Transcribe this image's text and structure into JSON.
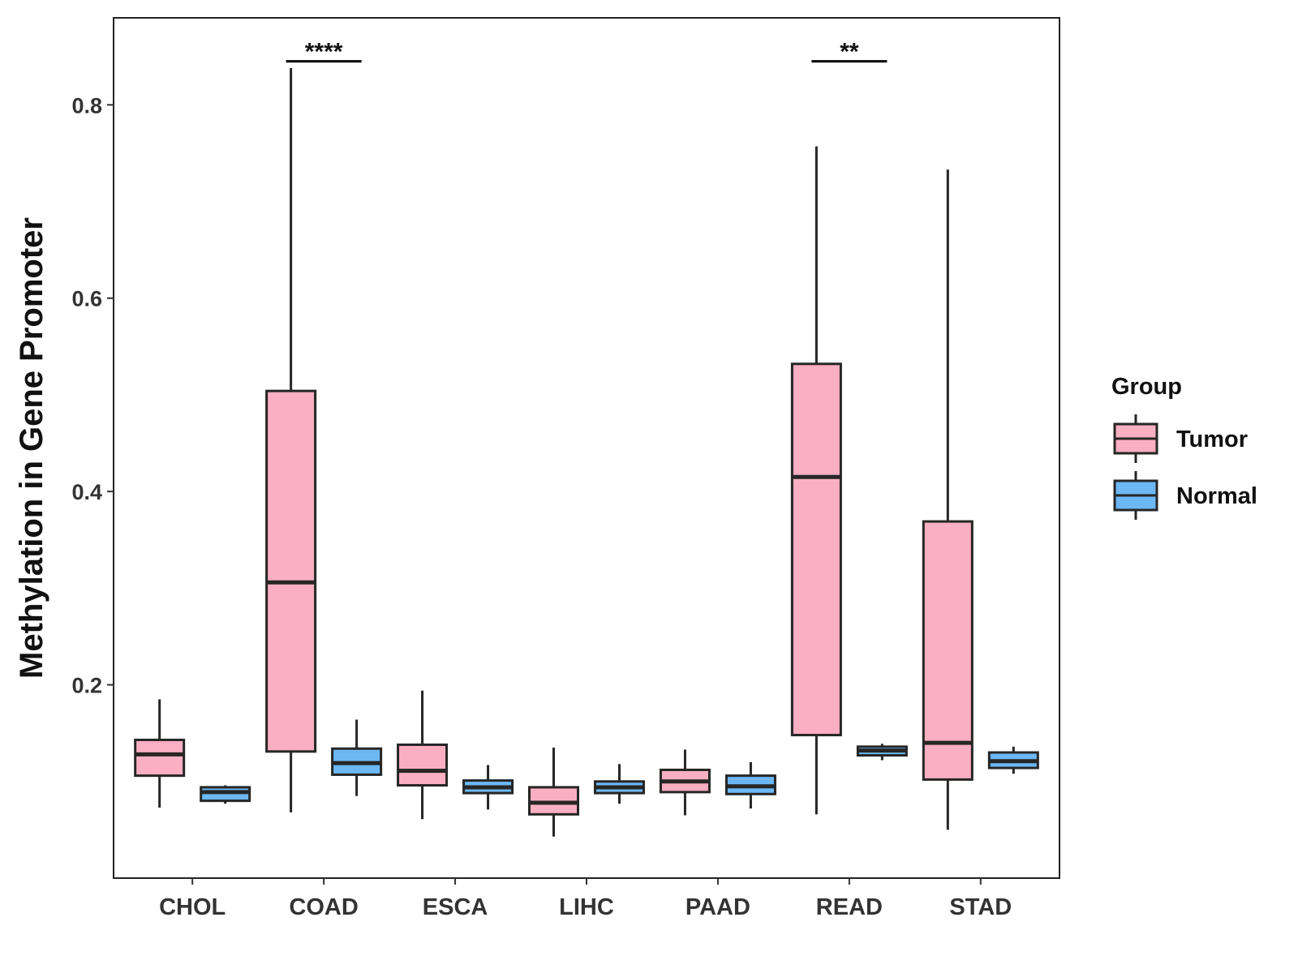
{
  "chart_data": {
    "type": "boxplot",
    "title": "",
    "xlabel": "",
    "ylabel": "Methylation in Gene Promoter",
    "ylim": [
      0.0,
      0.89
    ],
    "yticks": [
      0.2,
      0.4,
      0.6,
      0.8
    ],
    "ytick_labels": [
      "0.2",
      "0.4",
      "0.6",
      "0.8"
    ],
    "grid": false,
    "categories": [
      "CHOL",
      "COAD",
      "ESCA",
      "LIHC",
      "PAAD",
      "READ",
      "STAD"
    ],
    "series": [
      {
        "name": "Tumor",
        "color": "#FBAFC2",
        "boxes": [
          {
            "min": 0.073,
            "q1": 0.106,
            "median": 0.128,
            "q3": 0.143,
            "max": 0.185
          },
          {
            "min": 0.068,
            "q1": 0.131,
            "median": 0.306,
            "q3": 0.504,
            "max": 0.838
          },
          {
            "min": 0.061,
            "q1": 0.096,
            "median": 0.111,
            "q3": 0.138,
            "max": 0.194
          },
          {
            "min": 0.043,
            "q1": 0.066,
            "median": 0.078,
            "q3": 0.094,
            "max": 0.135
          },
          {
            "min": 0.065,
            "q1": 0.089,
            "median": 0.1,
            "q3": 0.112,
            "max": 0.133
          },
          {
            "min": 0.066,
            "q1": 0.148,
            "median": 0.415,
            "q3": 0.532,
            "max": 0.757
          },
          {
            "min": 0.05,
            "q1": 0.102,
            "median": 0.14,
            "q3": 0.369,
            "max": 0.733
          }
        ]
      },
      {
        "name": "Normal",
        "color": "#6CB8F5",
        "boxes": [
          {
            "min": 0.077,
            "q1": 0.08,
            "median": 0.089,
            "q3": 0.094,
            "max": 0.096
          },
          {
            "min": 0.085,
            "q1": 0.107,
            "median": 0.119,
            "q3": 0.134,
            "max": 0.164
          },
          {
            "min": 0.071,
            "q1": 0.088,
            "median": 0.094,
            "q3": 0.101,
            "max": 0.117
          },
          {
            "min": 0.077,
            "q1": 0.088,
            "median": 0.094,
            "q3": 0.1,
            "max": 0.118
          },
          {
            "min": 0.072,
            "q1": 0.087,
            "median": 0.095,
            "q3": 0.106,
            "max": 0.12
          },
          {
            "min": 0.122,
            "q1": 0.127,
            "median": 0.132,
            "q3": 0.136,
            "max": 0.139
          },
          {
            "min": 0.108,
            "q1": 0.114,
            "median": 0.121,
            "q3": 0.13,
            "max": 0.136
          }
        ]
      }
    ],
    "significance": [
      {
        "category": "COAD",
        "label": "****",
        "y": 0.845
      },
      {
        "category": "READ",
        "label": "**",
        "y": 0.845
      }
    ],
    "legend": {
      "title": "Group",
      "position": "right",
      "entries": [
        "Tumor",
        "Normal"
      ]
    }
  }
}
